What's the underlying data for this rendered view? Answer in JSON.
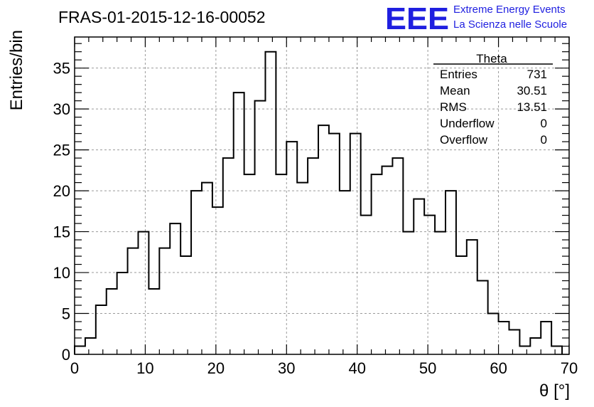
{
  "header": {
    "run_title": "FRAS-01-2015-12-16-00052",
    "logo_text": "EEE",
    "logo_line1": "Extreme Energy Events",
    "logo_line2": "La Scienza nelle Scuole"
  },
  "stats": {
    "title": "Theta",
    "rows": [
      {
        "label": "Entries",
        "value": "731"
      },
      {
        "label": "Mean",
        "value": "30.51"
      },
      {
        "label": "RMS",
        "value": "13.51"
      },
      {
        "label": "Underflow",
        "value": "0"
      },
      {
        "label": "Overflow",
        "value": "0"
      }
    ]
  },
  "colors": {
    "logo": "#1f1fe0",
    "line": "#000000",
    "grid": "#9a9a9a"
  },
  "chart_data": {
    "type": "bar",
    "xlabel": "θ [°]",
    "ylabel": "Entries/bin",
    "xlim": [
      0,
      70
    ],
    "ylim": [
      0,
      38.8
    ],
    "bin_width": 1.5,
    "x_ticks": [
      0,
      10,
      20,
      30,
      40,
      50,
      60,
      70
    ],
    "y_ticks": [
      0,
      5,
      10,
      15,
      20,
      25,
      30,
      35
    ],
    "grid": true,
    "values": [
      1,
      2,
      6,
      8,
      10,
      13,
      15,
      8,
      13,
      16,
      12,
      20,
      21,
      18,
      24,
      32,
      22,
      31,
      37,
      22,
      26,
      21,
      24,
      28,
      27,
      20,
      27,
      17,
      22,
      23,
      24,
      15,
      19,
      17,
      15,
      20,
      12,
      14,
      9,
      5,
      4,
      3,
      1,
      2,
      4,
      1
    ]
  }
}
